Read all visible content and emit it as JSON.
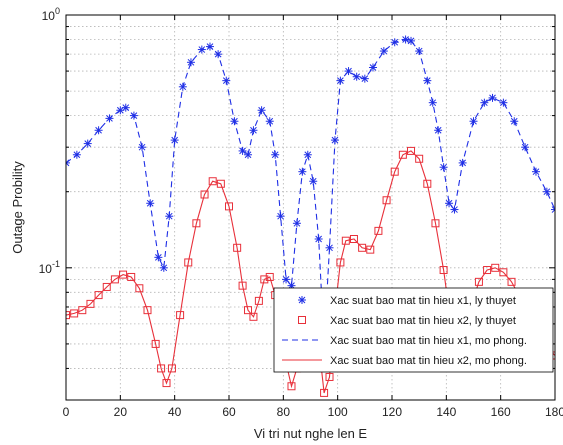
{
  "chart_data": {
    "type": "line",
    "xlabel": "Vi tri nut nghe len E",
    "ylabel": "Outage Probility",
    "xlim": [
      0,
      180
    ],
    "ylim": [
      0.03,
      1
    ],
    "yscale": "log",
    "grid": true,
    "legend_position": "bottom-right",
    "x_ticks": [
      "0",
      "20",
      "40",
      "60",
      "80",
      "100",
      "120",
      "140",
      "160",
      "180"
    ],
    "y_ticks": [
      {
        "base": "10",
        "exp": "0",
        "value": 1
      },
      {
        "base": "10",
        "exp": "-1",
        "value": 0.1
      }
    ],
    "series": [
      {
        "name": "Xac suat bao mat tin hieu x1, ly thuyet",
        "style": "marker-star",
        "color": "#1f2fe6",
        "x": [
          0,
          4,
          8,
          12,
          16,
          20,
          22,
          25,
          28,
          31,
          34,
          36,
          38,
          40,
          43,
          46,
          50,
          53,
          56,
          59,
          62,
          65,
          67,
          69,
          72,
          75,
          77,
          79,
          81,
          83,
          85,
          87,
          89,
          91,
          93,
          95,
          97,
          99,
          101,
          104,
          107,
          110,
          113,
          117,
          121,
          125,
          127,
          130,
          133,
          135,
          137,
          139,
          141,
          143,
          146,
          150,
          154,
          157,
          161,
          165,
          169,
          173,
          177,
          180
        ],
        "values": [
          0.26,
          0.28,
          0.31,
          0.35,
          0.39,
          0.42,
          0.43,
          0.4,
          0.3,
          0.18,
          0.11,
          0.1,
          0.16,
          0.32,
          0.52,
          0.65,
          0.73,
          0.75,
          0.7,
          0.55,
          0.38,
          0.29,
          0.28,
          0.35,
          0.42,
          0.38,
          0.28,
          0.16,
          0.09,
          0.085,
          0.15,
          0.24,
          0.28,
          0.22,
          0.13,
          0.05,
          0.12,
          0.32,
          0.55,
          0.6,
          0.57,
          0.56,
          0.62,
          0.72,
          0.78,
          0.8,
          0.79,
          0.72,
          0.55,
          0.45,
          0.35,
          0.25,
          0.18,
          0.17,
          0.26,
          0.38,
          0.45,
          0.47,
          0.45,
          0.38,
          0.3,
          0.24,
          0.2,
          0.17
        ]
      },
      {
        "name": "Xac suat bao mat tin hieu x2, ly thuyet",
        "style": "marker-square",
        "color": "#e8303a",
        "x": [
          0,
          3,
          6,
          9,
          12,
          15,
          18,
          21,
          24,
          27,
          30,
          33,
          35,
          37,
          39,
          42,
          45,
          48,
          51,
          54,
          57,
          60,
          63,
          65,
          67,
          69,
          71,
          73,
          75,
          77,
          79,
          81,
          83,
          85,
          87,
          89,
          91,
          93,
          95,
          97,
          99,
          101,
          103,
          106,
          109,
          112,
          115,
          118,
          121,
          124,
          127,
          130,
          133,
          136,
          139,
          141,
          143,
          145,
          147,
          149,
          152,
          155,
          158,
          161,
          164,
          167,
          170,
          173,
          176,
          180
        ],
        "values": [
          0.065,
          0.066,
          0.068,
          0.072,
          0.078,
          0.084,
          0.09,
          0.094,
          0.092,
          0.083,
          0.068,
          0.05,
          0.04,
          0.035,
          0.04,
          0.065,
          0.105,
          0.15,
          0.195,
          0.22,
          0.215,
          0.175,
          0.12,
          0.085,
          0.068,
          0.064,
          0.074,
          0.09,
          0.092,
          0.078,
          0.058,
          0.042,
          0.034,
          0.04,
          0.057,
          0.068,
          0.064,
          0.05,
          0.032,
          0.037,
          0.068,
          0.105,
          0.128,
          0.13,
          0.12,
          0.118,
          0.14,
          0.185,
          0.24,
          0.28,
          0.29,
          0.27,
          0.215,
          0.15,
          0.098,
          0.068,
          0.052,
          0.05,
          0.058,
          0.07,
          0.088,
          0.098,
          0.1,
          0.096,
          0.088,
          0.077,
          0.066,
          0.057,
          0.05,
          0.045
        ]
      },
      {
        "name": "Xac suat bao mat tin hieu x1, mo phong.",
        "style": "dashed",
        "color": "#1f2fe6",
        "same_as": 0
      },
      {
        "name": "Xac suat bao mat tin hieu x2, mo phong.",
        "style": "solid",
        "color": "#e8303a",
        "same_as": 1
      }
    ]
  }
}
